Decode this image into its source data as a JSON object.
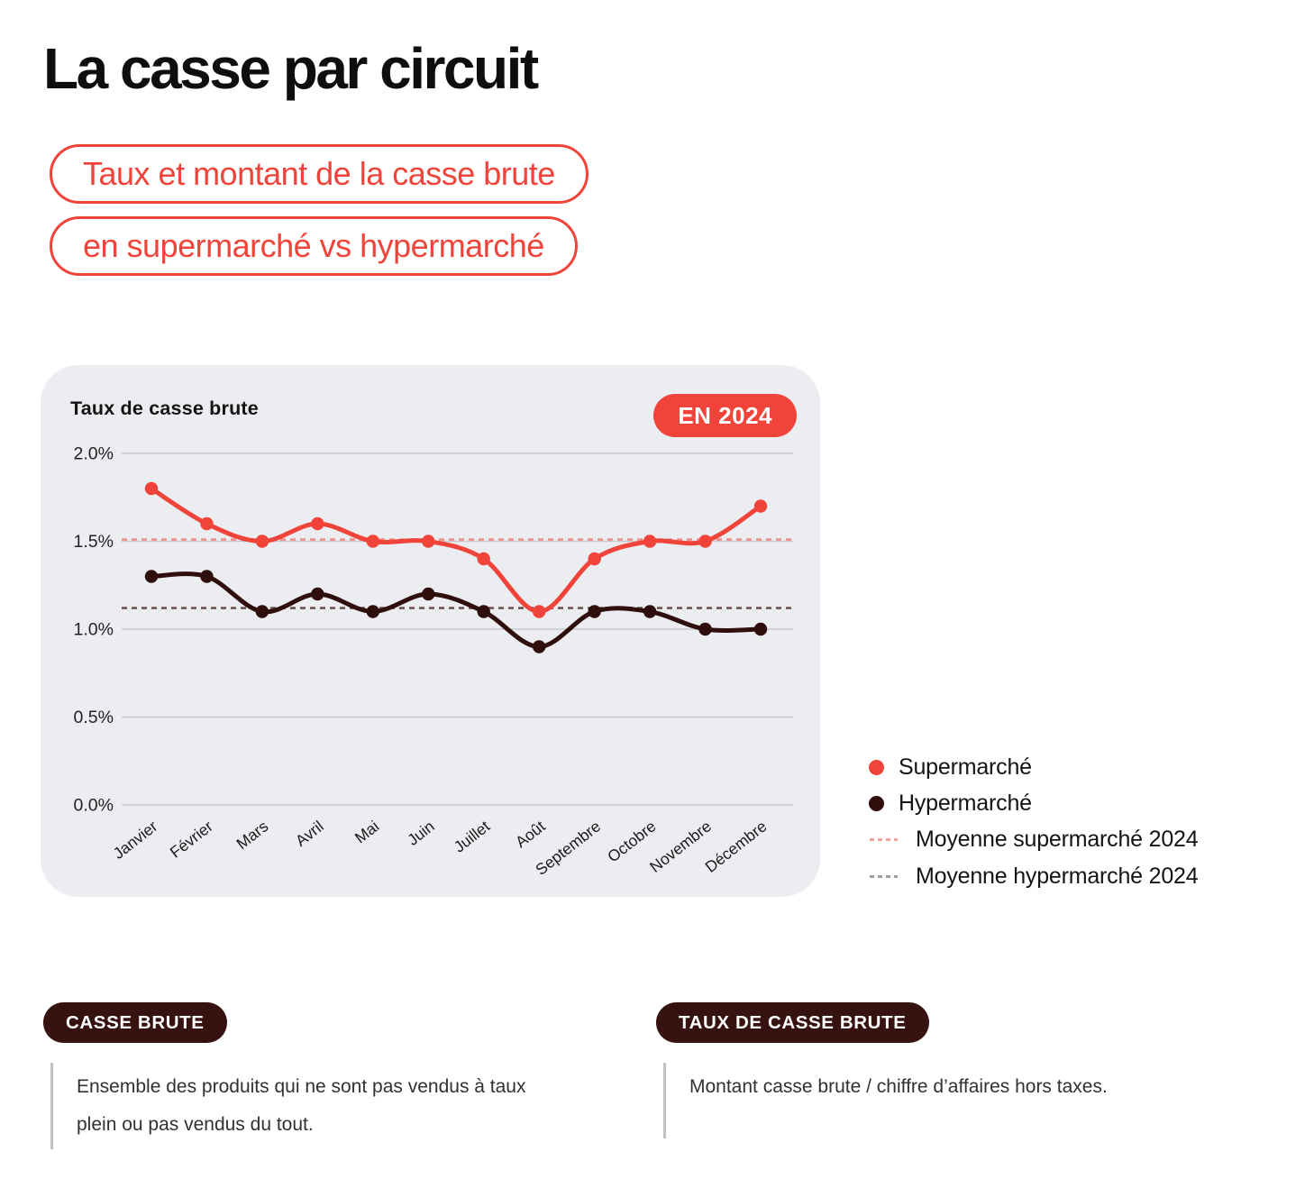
{
  "header": {
    "title": "La casse par circuit",
    "subtitle_lines": [
      "Taux et montant de la casse brute",
      "en supermarché vs hypermarché"
    ],
    "accent_color": "#F0433A"
  },
  "chart_data": {
    "type": "line",
    "title": "Taux de casse brute",
    "badge": "EN 2024",
    "categories": [
      "Janvier",
      "Février",
      "Mars",
      "Avril",
      "Mai",
      "Juin",
      "Juillet",
      "Août",
      "Septembre",
      "Octobre",
      "Novembre",
      "Décembre"
    ],
    "series": [
      {
        "name": "Supermarché",
        "color": "#F0433A",
        "values": [
          1.8,
          1.6,
          1.5,
          1.6,
          1.5,
          1.5,
          1.4,
          1.1,
          1.4,
          1.5,
          1.5,
          1.7
        ]
      },
      {
        "name": "Hypermarché",
        "color": "#2E0F0C",
        "values": [
          1.3,
          1.3,
          1.1,
          1.2,
          1.1,
          1.2,
          1.1,
          0.9,
          1.1,
          1.1,
          1.0,
          1.0
        ]
      }
    ],
    "average_lines": [
      {
        "name": "Moyenne supermarché 2024",
        "value": 1.51,
        "color": "#F0908A"
      },
      {
        "name": "Moyenne hypermarché 2024",
        "value": 1.12,
        "color": "#6F5350"
      }
    ],
    "y_ticks": [
      {
        "value": 2.0,
        "label": "2.0%"
      },
      {
        "value": 1.5,
        "label": "1.5%"
      },
      {
        "value": 1.0,
        "label": "1.0%"
      },
      {
        "value": 0.5,
        "label": "0.5%"
      },
      {
        "value": 0.0,
        "label": "0.0%"
      }
    ],
    "ylim": [
      0,
      2.0
    ],
    "grid": "horizontal-only",
    "legend_position": "right-bottom",
    "card_background": "#ECEDF1",
    "gridline_color": "#C7C9CE",
    "tick_label_color": "#222222",
    "x_label_color": "#1A1A1A"
  },
  "legend": {
    "items": [
      {
        "label": "Supermarché",
        "swatch": "dot",
        "color": "#F0433A"
      },
      {
        "label": "Hypermarché",
        "swatch": "dot",
        "color": "#2E0F0C"
      },
      {
        "label": "Moyenne supermarché 2024",
        "swatch": "dash",
        "color": "#F2A39D"
      },
      {
        "label": "Moyenne hypermarché 2024",
        "swatch": "dash",
        "color": "#A39BA2"
      }
    ]
  },
  "definitions": {
    "pill_background": "#361310",
    "items": [
      {
        "term": "CASSE BRUTE",
        "definition": "Ensemble des produits qui ne sont pas vendus à taux plein ou pas vendus du tout."
      },
      {
        "term": "TAUX DE CASSE BRUTE",
        "definition": "Montant casse brute / chiffre d’affaires hors taxes."
      }
    ]
  }
}
